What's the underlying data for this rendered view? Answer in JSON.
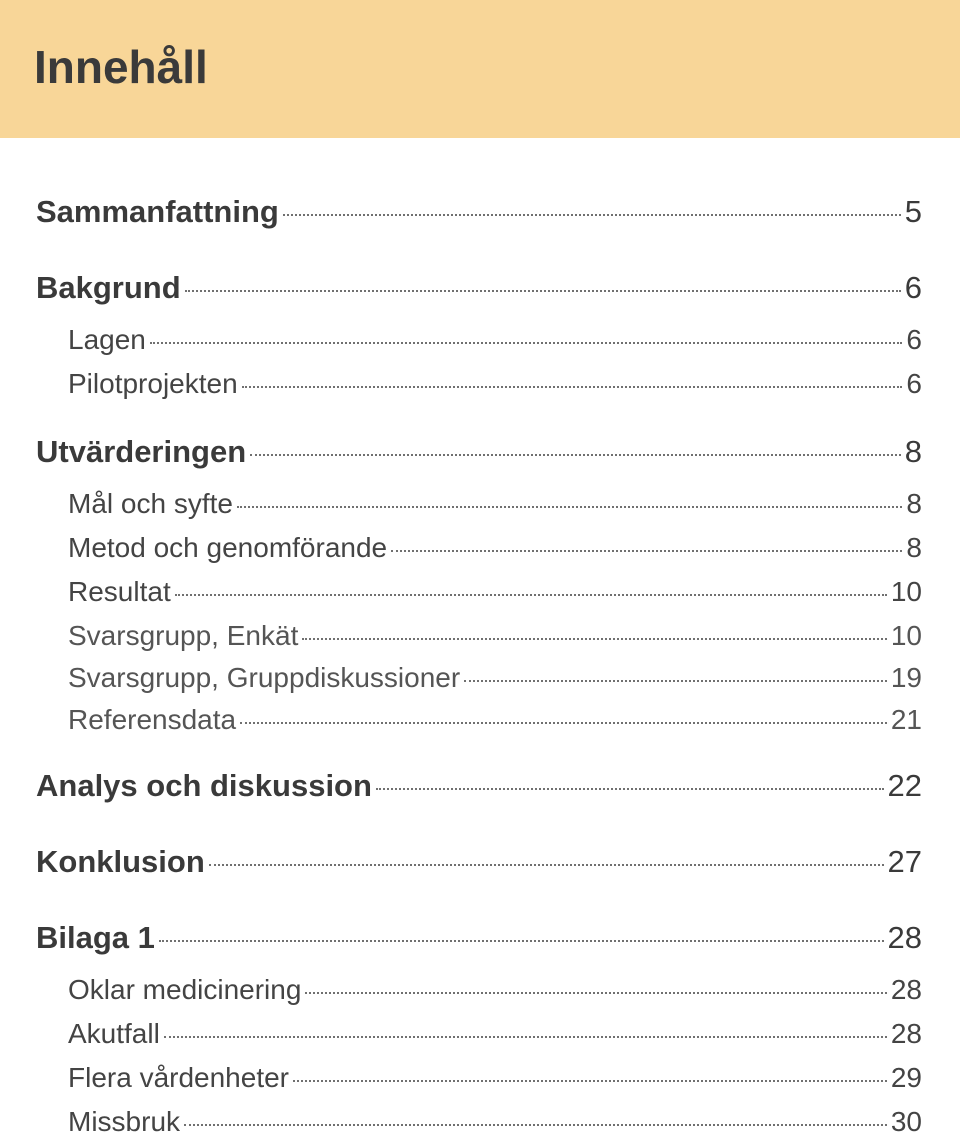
{
  "header": {
    "title": "Innehåll"
  },
  "colors": {
    "header_band_bg": "#f8d698",
    "page_bg": "#ffffff",
    "text_primary": "#3a3a3a",
    "dot_leader": "#707070"
  },
  "typography": {
    "header_font": "Segoe UI / Helvetica Neue",
    "header_title_pt": 46,
    "level0_pt": 31,
    "level1_pt": 28,
    "level2_pt": 28
  },
  "toc": [
    {
      "label": "Sammanfattning",
      "page": "5",
      "level": 0
    },
    {
      "label": "Bakgrund",
      "page": "6",
      "level": 0
    },
    {
      "label": "Lagen",
      "page": "6",
      "level": 1
    },
    {
      "label": "Pilotprojekten",
      "page": "6",
      "level": 1
    },
    {
      "label": "Utvärderingen",
      "page": "8",
      "level": 0
    },
    {
      "label": "Mål och syfte",
      "page": "8",
      "level": 1
    },
    {
      "label": "Metod och genomförande",
      "page": "8",
      "level": 1
    },
    {
      "label": "Resultat",
      "page": "10",
      "level": 1
    },
    {
      "label": "Svarsgrupp, Enkät",
      "page": "10",
      "level": 2
    },
    {
      "label": "Svarsgrupp, Gruppdiskussioner",
      "page": "19",
      "level": 2
    },
    {
      "label": "Referensdata",
      "page": "21",
      "level": 2
    },
    {
      "label": "Analys och diskussion",
      "page": "22",
      "level": 0
    },
    {
      "label": "Konklusion",
      "page": "27",
      "level": 0
    },
    {
      "label": "Bilaga 1",
      "page": "28",
      "level": 0
    },
    {
      "label": "Oklar medicinering",
      "page": "28",
      "level": 1
    },
    {
      "label": "Akutfall",
      "page": "28",
      "level": 1
    },
    {
      "label": "Flera vårdenheter",
      "page": "29",
      "level": 1
    },
    {
      "label": "Missbruk",
      "page": "30",
      "level": 1
    }
  ]
}
